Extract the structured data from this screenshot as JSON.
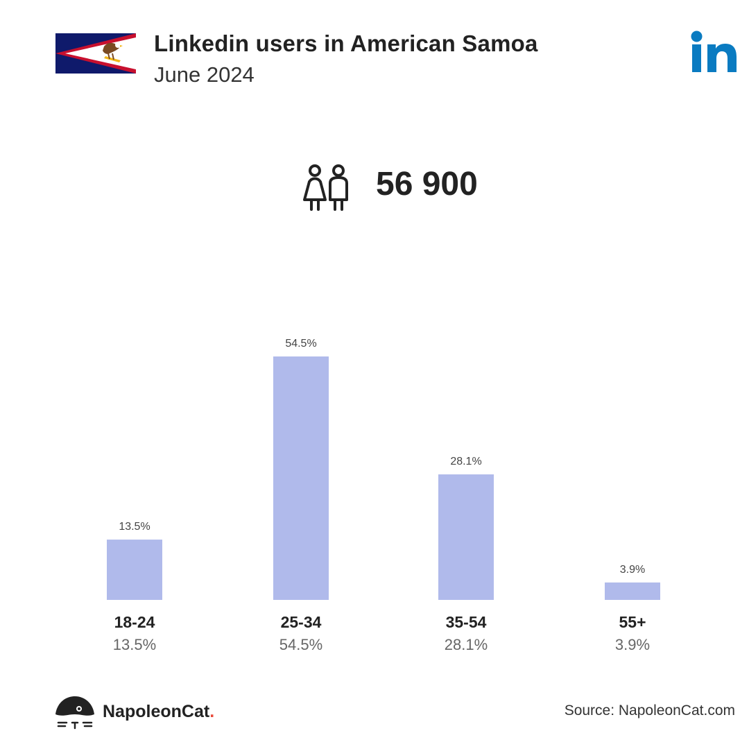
{
  "header": {
    "title": "Linkedin users in American Samoa",
    "subtitle": "June 2024"
  },
  "total": {
    "value": "56 900"
  },
  "colors": {
    "bar": "#b0baeb",
    "linkedin": "#0a7bc1",
    "flag_blue": "#0f1a6b",
    "flag_red": "#c8102e"
  },
  "icons": {
    "flag": "american-samoa-flag",
    "logo": "linkedin-logo",
    "people": "people-icon",
    "brand": "napoleoncat-logo"
  },
  "chart_data": {
    "type": "bar",
    "categories": [
      "18-24",
      "25-34",
      "35-54",
      "55+"
    ],
    "values": [
      13.5,
      54.5,
      28.1,
      3.9
    ],
    "value_labels": [
      "13.5%",
      "54.5%",
      "28.1%",
      "3.9%"
    ],
    "title": "",
    "xlabel": "",
    "ylabel": "",
    "ylim": [
      0,
      54.5
    ],
    "grid": false
  },
  "footer": {
    "brand_name": "NapoleonCat",
    "brand_dot": ".",
    "source": "Source: NapoleonCat.com"
  }
}
